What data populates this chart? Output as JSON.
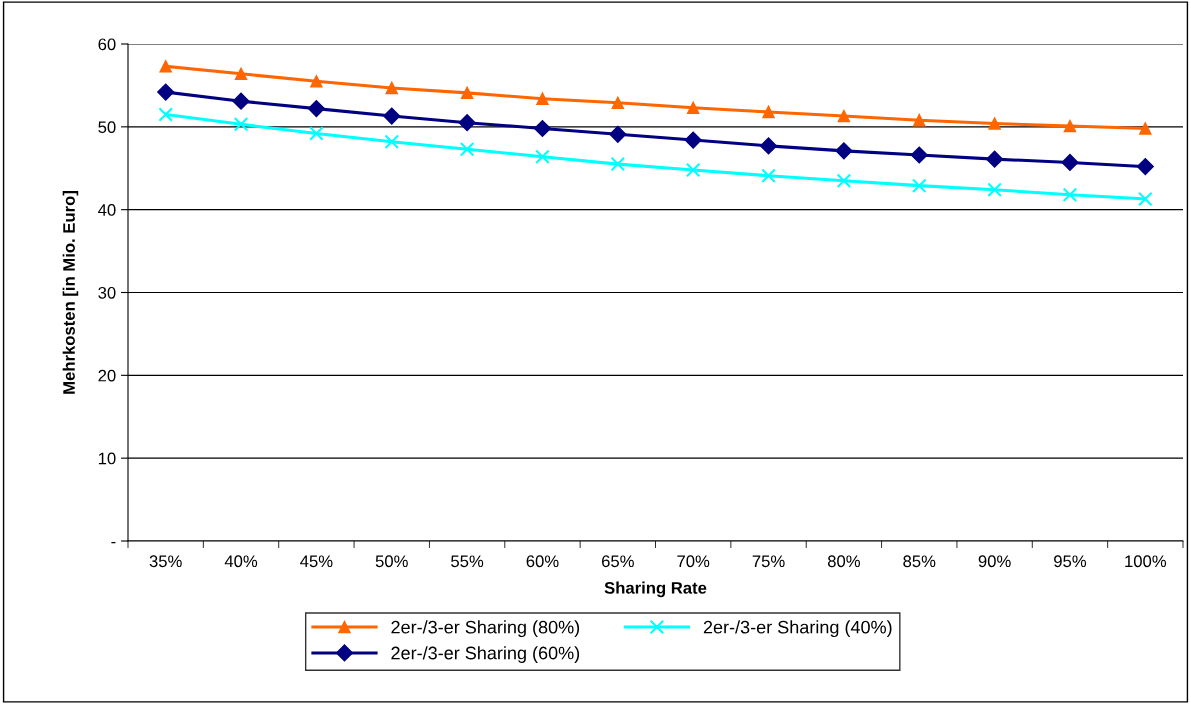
{
  "chart_data": {
    "type": "line",
    "xlabel": "Sharing Rate",
    "ylabel": "Mehrkosten [in Mio. Euro]",
    "categories": [
      "35%",
      "40%",
      "45%",
      "50%",
      "55%",
      "60%",
      "65%",
      "70%",
      "75%",
      "80%",
      "85%",
      "90%",
      "95%",
      "100%"
    ],
    "series": [
      {
        "name": "2er-/3-er Sharing (80%)",
        "color": "#ff6600",
        "marker": "triangle",
        "values": [
          57.3,
          56.4,
          55.5,
          54.7,
          54.1,
          53.4,
          52.9,
          52.3,
          51.8,
          51.3,
          50.8,
          50.4,
          50.1,
          49.8
        ]
      },
      {
        "name": "2er-/3-er Sharing (60%)",
        "color": "#000080",
        "marker": "diamond",
        "values": [
          54.2,
          53.1,
          52.2,
          51.3,
          50.5,
          49.8,
          49.1,
          48.4,
          47.7,
          47.1,
          46.6,
          46.1,
          45.7,
          45.2
        ]
      },
      {
        "name": "2er-/3-er Sharing (40%)",
        "color": "#00ffff",
        "marker": "cross",
        "values": [
          51.5,
          50.3,
          49.2,
          48.2,
          47.3,
          46.4,
          45.5,
          44.8,
          44.1,
          43.5,
          42.9,
          42.4,
          41.8,
          41.3
        ]
      }
    ],
    "ylim": [
      0,
      60
    ],
    "yticks": [
      {
        "value": 0,
        "label": "-"
      },
      10,
      20,
      30,
      40,
      50,
      60
    ],
    "grid": "y",
    "legend": "bottom",
    "line_style": "solid"
  }
}
